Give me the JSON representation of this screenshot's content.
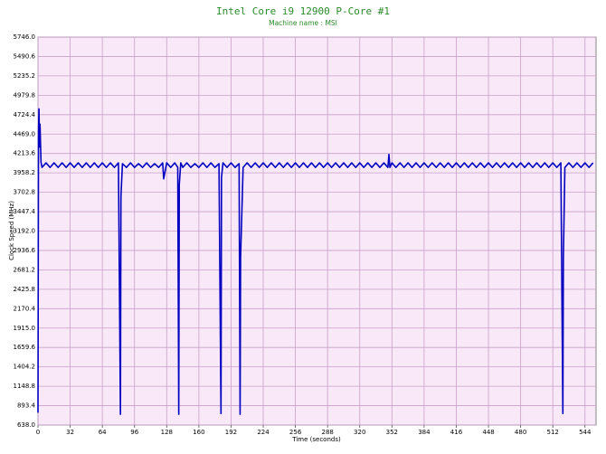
{
  "chart_data": {
    "type": "line",
    "title": "Intel Core i9 12900 P-Core #1",
    "subtitle": "Machine name : MSI",
    "x_label": "Time (seconds)",
    "y_label": "Clock Speed (MHz)",
    "xlim": [
      0,
      555
    ],
    "ylim": [
      638.0,
      5746.0
    ],
    "xticks": [
      0,
      32,
      64,
      96,
      128,
      160,
      192,
      224,
      256,
      288,
      320,
      352,
      384,
      416,
      448,
      480,
      512,
      544
    ],
    "yticks": [
      {
        "value": 638.0,
        "label": "638.0"
      },
      {
        "value": 893.4,
        "label": "893.4"
      },
      {
        "value": 1148.8,
        "label": "1148.8"
      },
      {
        "value": 1404.2,
        "label": "1404.2"
      },
      {
        "value": 1659.6,
        "label": "1659.6"
      },
      {
        "value": 1915.0,
        "label": "1915.0"
      },
      {
        "value": 2170.4,
        "label": "2170.4"
      },
      {
        "value": 2425.8,
        "label": "2425.8"
      },
      {
        "value": 2681.2,
        "label": "2681.2"
      },
      {
        "value": 2936.6,
        "label": "2936.6"
      },
      {
        "value": 3192.0,
        "label": "3192.0"
      },
      {
        "value": 3447.4,
        "label": "3447.4"
      },
      {
        "value": 3702.8,
        "label": "3702.8"
      },
      {
        "value": 3958.2,
        "label": "3958.2"
      },
      {
        "value": 4213.6,
        "label": "4213.6"
      },
      {
        "value": 4469.0,
        "label": "4469.0"
      },
      {
        "value": 4724.4,
        "label": "4724.4"
      },
      {
        "value": 4979.8,
        "label": "4979.8"
      },
      {
        "value": 5235.2,
        "label": "5235.2"
      },
      {
        "value": 5490.6,
        "label": "5490.6"
      },
      {
        "value": 5746.0,
        "label": "5746.0"
      }
    ],
    "grid": true,
    "x": [
      0,
      0.5,
      1,
      1.5,
      2,
      3,
      4,
      8,
      12,
      16,
      20,
      24,
      28,
      32,
      36,
      40,
      44,
      48,
      52,
      56,
      60,
      64,
      68,
      72,
      76,
      80,
      82,
      82.5,
      84,
      88,
      92,
      96,
      100,
      104,
      108,
      112,
      116,
      120,
      124,
      125,
      128,
      132,
      136,
      139,
      140,
      140.5,
      142,
      144,
      148,
      152,
      156,
      160,
      164,
      168,
      172,
      176,
      180,
      182,
      182.5,
      184,
      188,
      192,
      196,
      200,
      201,
      201.5,
      204,
      208,
      212,
      216,
      220,
      224,
      228,
      232,
      236,
      240,
      244,
      248,
      252,
      256,
      260,
      264,
      268,
      272,
      276,
      280,
      284,
      288,
      292,
      296,
      300,
      304,
      308,
      312,
      316,
      320,
      324,
      328,
      332,
      336,
      340,
      344,
      348,
      349,
      350,
      352,
      356,
      360,
      364,
      368,
      372,
      376,
      380,
      384,
      388,
      392,
      396,
      400,
      404,
      408,
      412,
      416,
      420,
      424,
      428,
      432,
      436,
      440,
      444,
      448,
      452,
      456,
      460,
      464,
      468,
      472,
      476,
      480,
      484,
      488,
      492,
      496,
      500,
      504,
      508,
      512,
      516,
      520,
      522,
      522.5,
      524,
      528,
      532,
      536,
      540,
      544,
      548,
      552
    ],
    "series": [
      {
        "name": "P-Core #1",
        "color": "#0000c0",
        "values": [
          800,
          4500,
          4800,
          4300,
          4600,
          4100,
          4030,
          4090,
          4030,
          4090,
          4030,
          4090,
          4030,
          4090,
          4030,
          4090,
          4030,
          4090,
          4030,
          4090,
          4030,
          4090,
          4030,
          4090,
          4030,
          4090,
          780,
          3650,
          4080,
          4030,
          4090,
          4030,
          4080,
          4030,
          4090,
          4030,
          4080,
          4030,
          4090,
          3880,
          4090,
          4030,
          4090,
          4030,
          780,
          3800,
          4090,
          4030,
          4090,
          4030,
          4080,
          4030,
          4090,
          4030,
          4090,
          4030,
          4080,
          790,
          3900,
          4090,
          4030,
          4090,
          4030,
          4080,
          780,
          2850,
          4030,
          4090,
          4030,
          4090,
          4030,
          4090,
          4030,
          4090,
          4030,
          4090,
          4030,
          4090,
          4030,
          4090,
          4030,
          4090,
          4030,
          4090,
          4030,
          4090,
          4030,
          4090,
          4030,
          4090,
          4030,
          4090,
          4030,
          4090,
          4030,
          4090,
          4030,
          4090,
          4030,
          4090,
          4030,
          4090,
          4030,
          4200,
          4030,
          4090,
          4030,
          4090,
          4030,
          4090,
          4030,
          4090,
          4030,
          4090,
          4030,
          4090,
          4030,
          4090,
          4030,
          4090,
          4030,
          4090,
          4030,
          4090,
          4030,
          4090,
          4030,
          4090,
          4030,
          4090,
          4030,
          4090,
          4030,
          4090,
          4030,
          4090,
          4030,
          4090,
          4030,
          4090,
          4030,
          4090,
          4030,
          4090,
          4030,
          4090,
          4030,
          4090,
          790,
          2850,
          4030,
          4090,
          4030,
          4090,
          4030,
          4090,
          4030,
          4090
        ]
      }
    ]
  }
}
